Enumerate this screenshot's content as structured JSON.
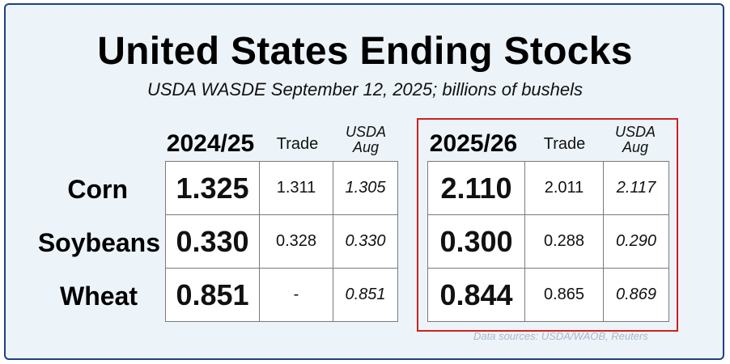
{
  "title": "United States Ending Stocks",
  "subtitle": "USDA WASDE September 12, 2025; billions of bushels",
  "rows": [
    "Corn",
    "Soybeans",
    "Wheat"
  ],
  "left_panel": {
    "year": "2024/25",
    "trade_label": "Trade",
    "usda_label_1": "USDA",
    "usda_label_2": "Aug",
    "cells": [
      {
        "main": "1.325",
        "trade": "1.311",
        "usda": "1.305"
      },
      {
        "main": "0.330",
        "trade": "0.328",
        "usda": "0.330"
      },
      {
        "main": "0.851",
        "trade": "-",
        "usda": "0.851"
      }
    ]
  },
  "right_panel": {
    "year": "2025/26",
    "trade_label": "Trade",
    "usda_label_1": "USDA",
    "usda_label_2": "Aug",
    "cells": [
      {
        "main": "2.110",
        "trade": "2.011",
        "usda": "2.117"
      },
      {
        "main": "0.300",
        "trade": "0.288",
        "usda": "0.290"
      },
      {
        "main": "0.844",
        "trade": "0.865",
        "usda": "0.869"
      }
    ]
  },
  "source": "Data sources: USDA/WAOB, Reuters",
  "colors": {
    "frame": "#1f3f8a",
    "highlight_box": "#d21f1f",
    "background": "#ecf4f9"
  }
}
